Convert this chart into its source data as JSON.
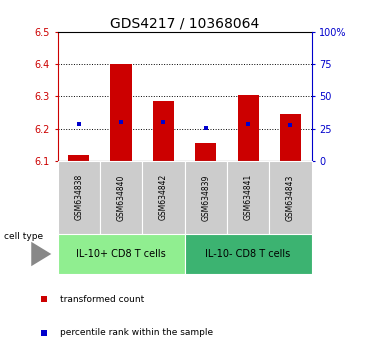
{
  "title": "GDS4217 / 10368064",
  "samples": [
    "GSM634838",
    "GSM634840",
    "GSM634842",
    "GSM634839",
    "GSM634841",
    "GSM634843"
  ],
  "red_values": [
    6.12,
    6.4,
    6.285,
    6.155,
    6.305,
    6.245
  ],
  "blue_values": [
    6.215,
    6.222,
    6.222,
    6.202,
    6.215,
    6.212
  ],
  "ylim_left": [
    6.1,
    6.5
  ],
  "ylim_right": [
    0,
    100
  ],
  "yticks_left": [
    6.1,
    6.2,
    6.3,
    6.4,
    6.5
  ],
  "yticks_right": [
    0,
    25,
    50,
    75,
    100
  ],
  "ytick_labels_right": [
    "0",
    "25",
    "50",
    "75",
    "100%"
  ],
  "bar_bottom": 6.1,
  "group1_label": "IL-10+ CD8 T cells",
  "group2_label": "IL-10- CD8 T cells",
  "group1_color": "#90EE90",
  "group2_color": "#3CB371",
  "bar_color": "#CC0000",
  "dot_color": "#0000CC",
  "cell_type_label": "cell type",
  "legend1": "transformed count",
  "legend2": "percentile rank within the sample",
  "title_fontsize": 10,
  "tick_fontsize": 7,
  "sample_fontsize": 5.5,
  "group_fontsize": 7,
  "legend_fontsize": 6.5,
  "bar_width": 0.5,
  "x_positions": [
    0,
    1,
    2,
    3,
    4,
    5
  ],
  "left_tick_color": "#CC0000",
  "right_tick_color": "#0000CC",
  "dot_size": 3.5
}
